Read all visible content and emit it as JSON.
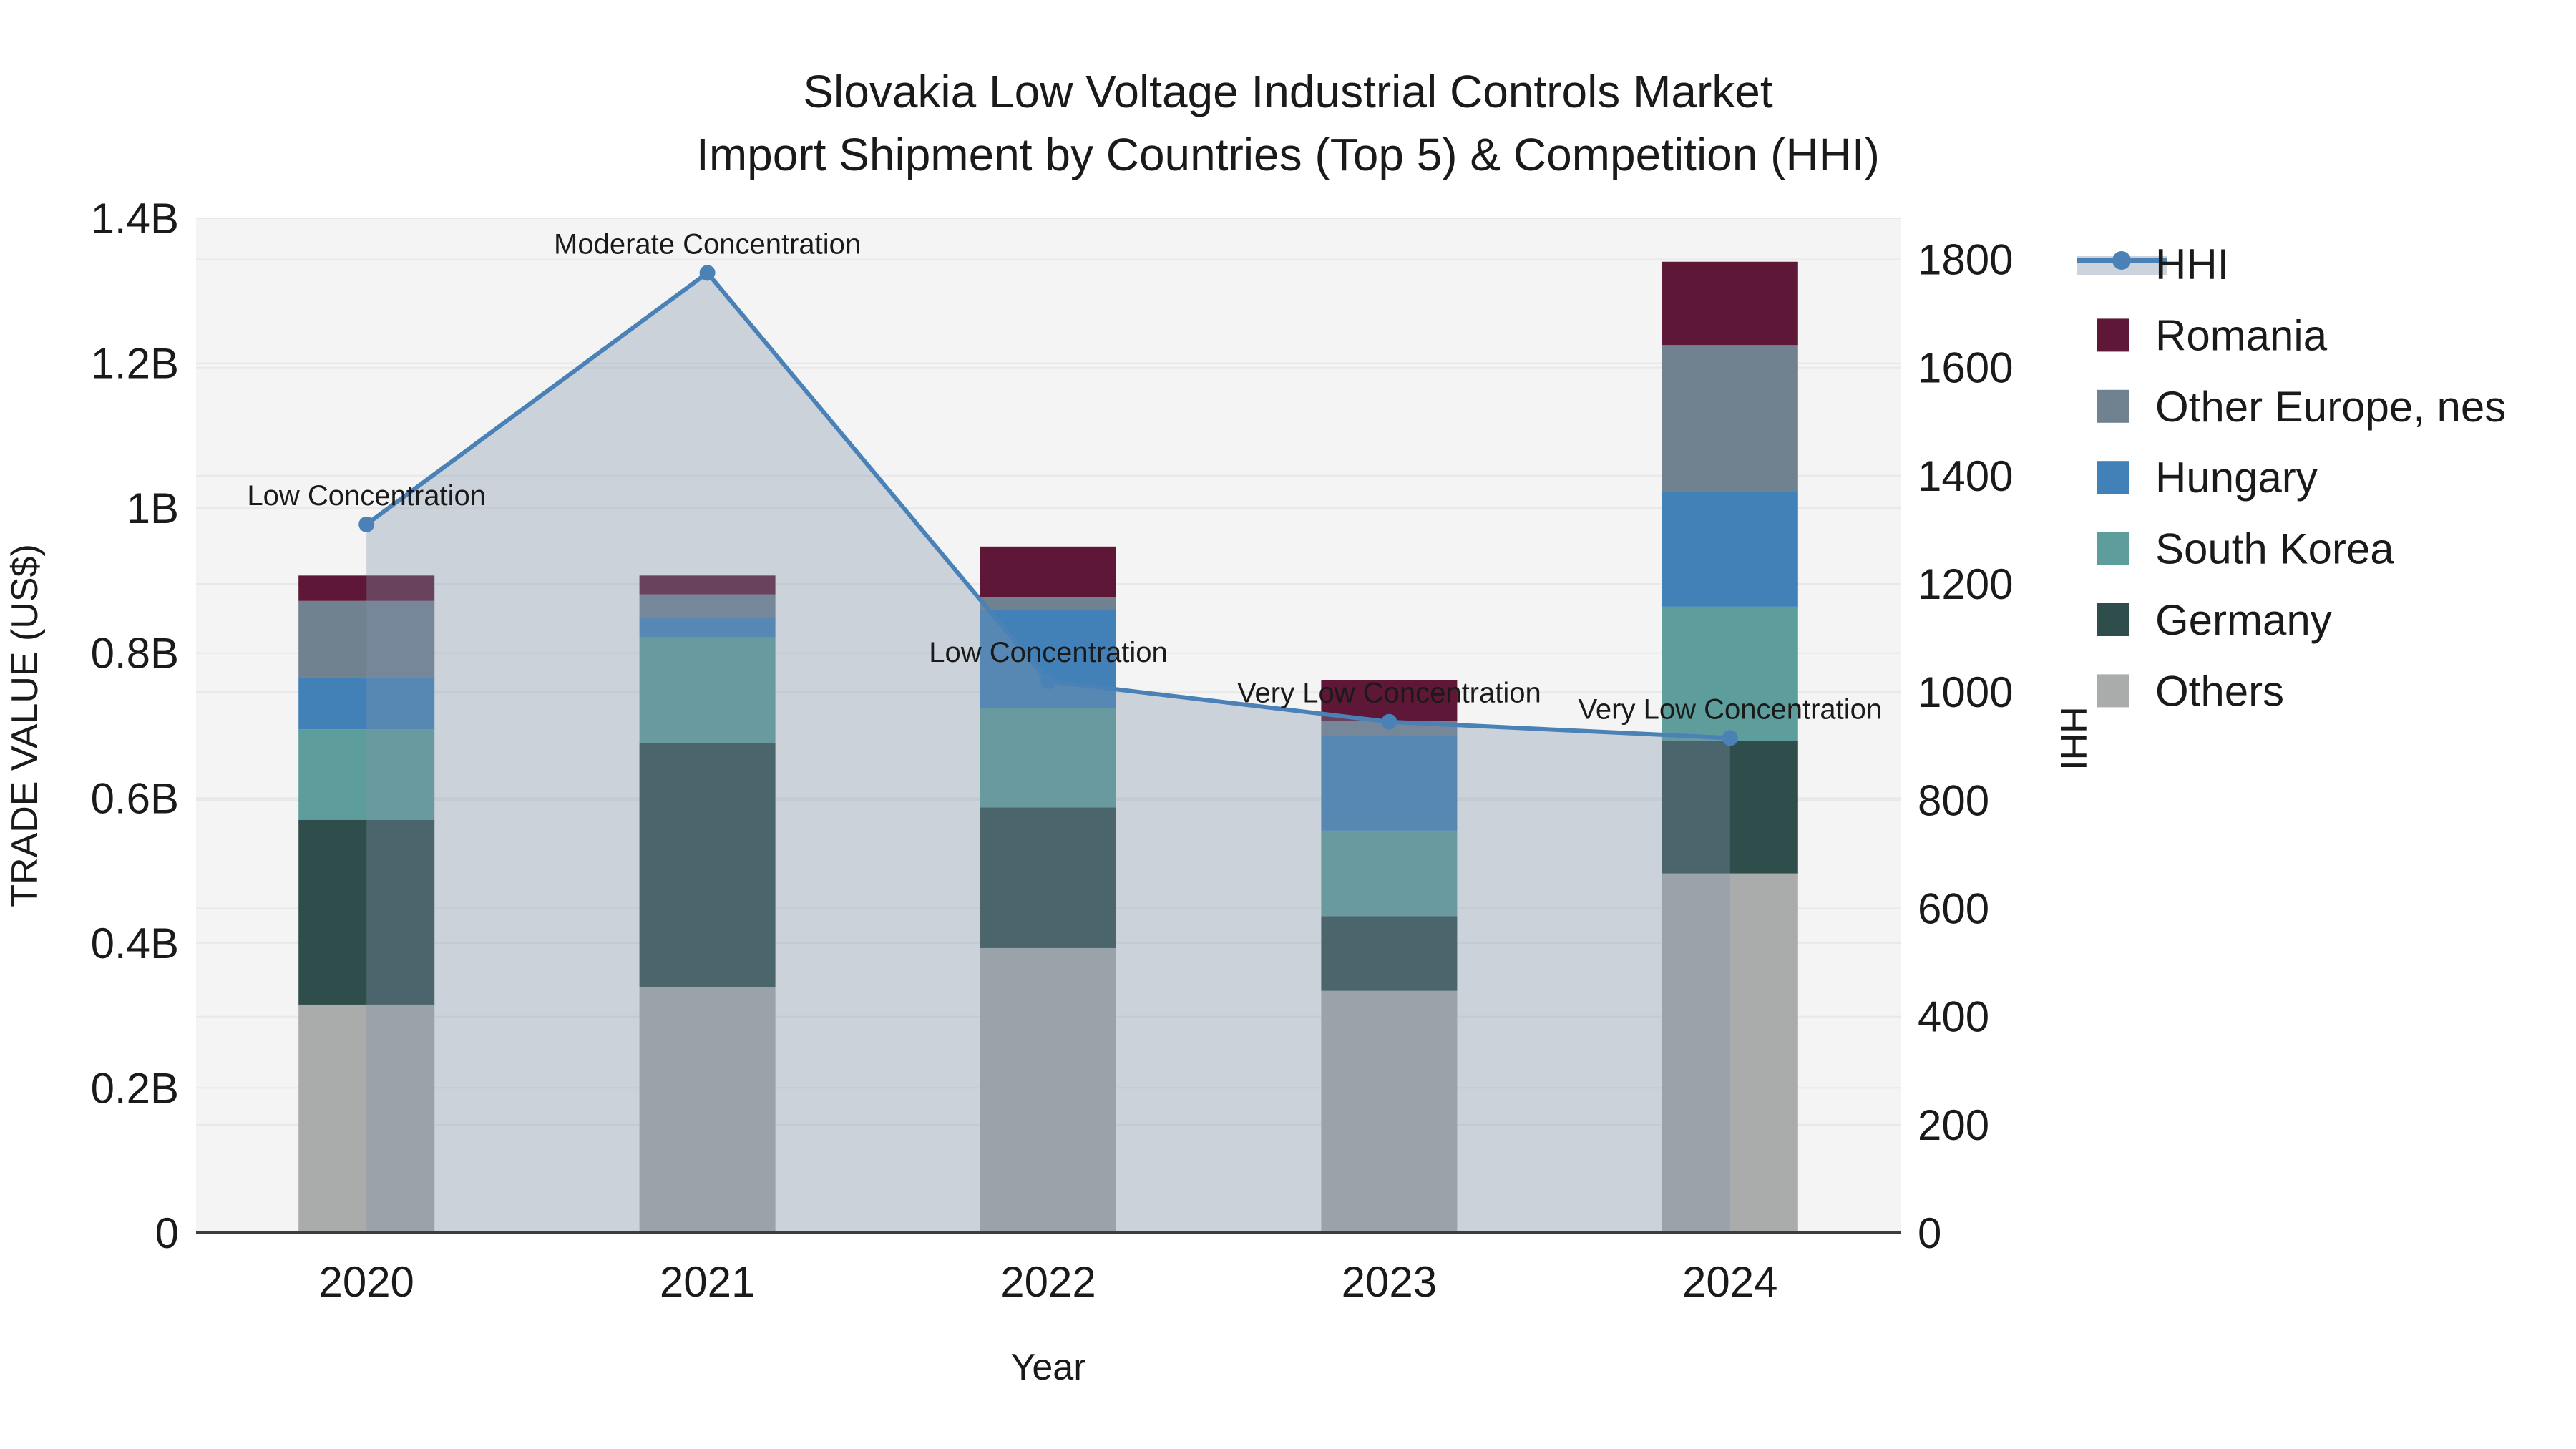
{
  "title": {
    "line1": "Slovakia  Low Voltage Industrial Controls Market",
    "line2": "Import Shipment by Countries (Top 5) & Competition (HHI)"
  },
  "axes": {
    "left": {
      "title": "TRADE VALUE (US$)",
      "tick_labels": [
        "0",
        "0.2B",
        "0.4B",
        "0.6B",
        "0.8B",
        "1B",
        "1.2B",
        "1.4B"
      ],
      "tick_values": [
        0,
        0.2,
        0.4,
        0.6,
        0.8,
        1.0,
        1.2,
        1.4
      ],
      "max": 1.4,
      "units": "billions USD"
    },
    "right": {
      "title": "HHI",
      "tick_labels": [
        "0",
        "200",
        "400",
        "600",
        "800",
        "1000",
        "1200",
        "1400",
        "1600",
        "1800"
      ],
      "tick_values": [
        0,
        200,
        400,
        600,
        800,
        1000,
        1200,
        1400,
        1600,
        1800
      ],
      "max": 1876
    },
    "x": {
      "title": "Year"
    }
  },
  "legend": {
    "items": [
      {
        "label": "HHI",
        "type": "line",
        "color": "#4a82b7",
        "band_color": "#ccd3dd"
      },
      {
        "label": "Romania",
        "type": "patch",
        "color": "#5f1737"
      },
      {
        "label": "Other Europe, nes",
        "type": "patch",
        "color": "#70818f"
      },
      {
        "label": "Hungary",
        "type": "patch",
        "color": "#4281b8"
      },
      {
        "label": "South Korea",
        "type": "patch",
        "color": "#5d9e9c"
      },
      {
        "label": "Germany",
        "type": "patch",
        "color": "#2e4d4b"
      },
      {
        "label": "Others",
        "type": "patch",
        "color": "#a9acab"
      }
    ]
  },
  "colors": {
    "plot_background": "#f4f4f4",
    "gridline": "#e8e8e8",
    "axis_line": "#3d3d3d",
    "hhi_line": "#4a82b7",
    "hhi_area_overlay": "rgba(127,147,168,0.35)",
    "annotation_text": "#111111"
  },
  "chart_data": {
    "type": "bar",
    "subtype": "stacked-bars-with-line-area",
    "title": "Slovakia  Low Voltage Industrial Controls Market Import Shipment by Countries (Top 5) & Competition (HHI)",
    "xlabel": "Year",
    "ylabel_left": "TRADE VALUE (US$)",
    "ylabel_right": "HHI",
    "categories": [
      "2020",
      "2021",
      "2022",
      "2023",
      "2024"
    ],
    "value_units": "billions of US$",
    "stack_order": "bottom-to-top",
    "series": [
      {
        "name": "Others",
        "color": "#a9acab",
        "values": [
          0.315,
          0.339,
          0.393,
          0.334,
          0.496
        ]
      },
      {
        "name": "Germany",
        "color": "#2e4d4b",
        "values": [
          0.255,
          0.337,
          0.194,
          0.103,
          0.183
        ]
      },
      {
        "name": "South Korea",
        "color": "#5d9e9c",
        "values": [
          0.125,
          0.146,
          0.137,
          0.118,
          0.185
        ]
      },
      {
        "name": "Hungary",
        "color": "#4281b8",
        "values": [
          0.072,
          0.027,
          0.135,
          0.131,
          0.158
        ]
      },
      {
        "name": "Other Europe, nes",
        "color": "#70818f",
        "values": [
          0.105,
          0.032,
          0.018,
          0.02,
          0.203
        ]
      },
      {
        "name": "Romania",
        "color": "#5f1737",
        "values": [
          0.035,
          0.026,
          0.07,
          0.057,
          0.115
        ]
      }
    ],
    "totals": [
      0.907,
      0.907,
      0.947,
      0.763,
      1.34
    ],
    "line": {
      "name": "HHI",
      "color": "#4a82b7",
      "axis": "right",
      "values": [
        1310,
        1775,
        1020,
        945,
        915
      ],
      "annotations": [
        "Low Concentration",
        "Moderate Concentration",
        "Low Concentration",
        "Very Low Concentration",
        "Very Low Concentration"
      ]
    },
    "ylim_left": [
      0,
      1.4
    ],
    "ylim_right": [
      0,
      1876
    ],
    "grid": true,
    "legend_position": "right"
  }
}
